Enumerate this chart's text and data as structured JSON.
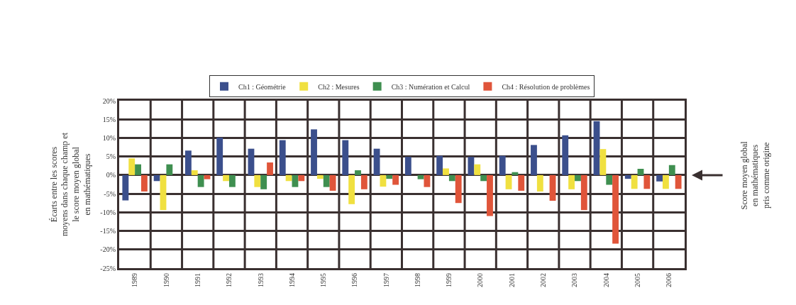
{
  "chart_data": {
    "type": "bar",
    "ylabel": "Écarts entre les scores\nmoyens dans chaque champ et\nle score moyen global\nen mathématiques",
    "categories": [
      "1989",
      "1990",
      "1991",
      "1992",
      "1993",
      "1994",
      "1995",
      "1996",
      "1997",
      "1998",
      "1999",
      "2000",
      "2001",
      "2002",
      "2003",
      "2004",
      "2005",
      "2006"
    ],
    "series": [
      {
        "name": "Ch1 : Géométrie",
        "color": "#3b4f8c",
        "values": [
          -6.8,
          -1.6,
          6.6,
          10.1,
          7.1,
          9.4,
          12.3,
          9.4,
          7.1,
          4.9,
          5.2,
          4.9,
          5.2,
          8.1,
          10.7,
          14.5,
          -1.0,
          -1.7
        ]
      },
      {
        "name": "Ch2 : Mesures",
        "color": "#f0e040",
        "values": [
          4.5,
          -9.4,
          1.3,
          -1.6,
          -3.2,
          -1.6,
          -1.0,
          -7.8,
          -3.1,
          0,
          1.8,
          2.9,
          -3.8,
          -4.4,
          -3.8,
          7.0,
          -3.7,
          -3.7
        ]
      },
      {
        "name": "Ch3 : Numération et Calcul",
        "color": "#3f8f50",
        "values": [
          2.9,
          2.9,
          -3.2,
          -3.2,
          -3.8,
          -3.2,
          -3.2,
          1.3,
          -1.0,
          -1.1,
          -1.6,
          -1.6,
          0.8,
          0,
          -1.6,
          -2.6,
          1.7,
          2.7
        ]
      },
      {
        "name": "Ch4 : Résolution de problèmes",
        "color": "#e0553a",
        "values": [
          -4.4,
          0,
          -1.1,
          0,
          3.4,
          -1.6,
          -4.2,
          -3.8,
          -2.6,
          -3.2,
          -7.5,
          -11.0,
          -4.2,
          -6.9,
          -9.4,
          -18.4,
          -3.7,
          -3.7
        ]
      }
    ],
    "ylim": [
      -25,
      20
    ],
    "yticks": [
      {
        "value": 20,
        "label": "20%"
      },
      {
        "value": 15,
        "label": "15%"
      },
      {
        "value": 10,
        "label": "10%"
      },
      {
        "value": 5,
        "label": "5%"
      },
      {
        "value": 0,
        "label": "0%"
      },
      {
        "value": -5,
        "label": "-5%"
      },
      {
        "value": -10,
        "label": "-10%"
      },
      {
        "value": -15,
        "label": "-15%"
      },
      {
        "value": -20,
        "label": "-20%"
      },
      {
        "value": -25,
        "label": "-25%"
      }
    ],
    "grid": true,
    "legend": "top",
    "annotations": [
      "Score moyen global\nen mathématiques\npris comme origine"
    ]
  }
}
